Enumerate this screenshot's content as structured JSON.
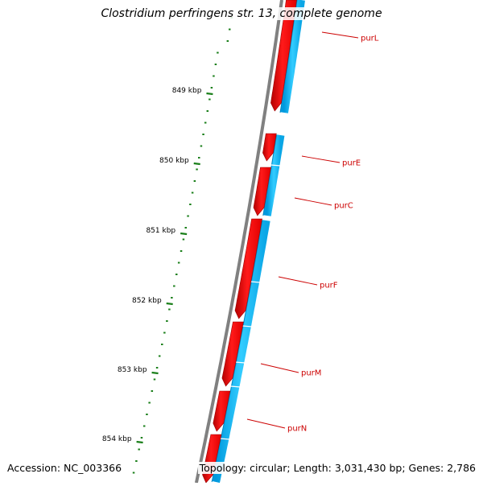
{
  "title": "Clostridium perfringens str. 13, complete genome",
  "accession": "Accession: NC_003366",
  "summary": "Topology: circular; Length: 3,031,430 bp; Genes: 2,786",
  "colors": {
    "backbone": "#808080",
    "forward_strand": "#ff0000",
    "reverse_strand": "#00bfff",
    "ticks": "#1a7f1a",
    "gene_labels": "#cc0000"
  },
  "scale_labels": [
    "849 kbp",
    "850 kbp",
    "851 kbp",
    "852 kbp",
    "853 kbp",
    "854 kbp"
  ],
  "gene_labels": [
    "purL",
    "purE",
    "purC",
    "purF",
    "purM",
    "purN"
  ]
}
